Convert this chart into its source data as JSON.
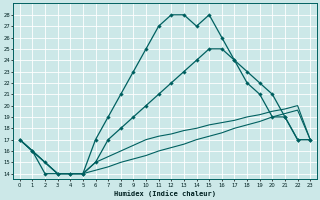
{
  "xlabel": "Humidex (Indice chaleur)",
  "bg_color": "#cce8e8",
  "grid_color": "#ffffff",
  "line_color": "#006060",
  "xlim": [
    -0.5,
    23.5
  ],
  "ylim": [
    13.5,
    29
  ],
  "yticks": [
    14,
    15,
    16,
    17,
    18,
    19,
    20,
    21,
    22,
    23,
    24,
    25,
    26,
    27,
    28
  ],
  "xticks": [
    0,
    1,
    2,
    3,
    4,
    5,
    6,
    7,
    8,
    9,
    10,
    11,
    12,
    13,
    14,
    15,
    16,
    17,
    18,
    19,
    20,
    21,
    22,
    23
  ],
  "line1_x": [
    0,
    1,
    2,
    3,
    4,
    5,
    6,
    7,
    8,
    9,
    10,
    11,
    12,
    13,
    14,
    15,
    16,
    17,
    18,
    19,
    20,
    21,
    22,
    23
  ],
  "line1_y": [
    17,
    16,
    14,
    14,
    14,
    14,
    17,
    19,
    21,
    23,
    25,
    27,
    28,
    28,
    27,
    28,
    26,
    24,
    22,
    21,
    19,
    19,
    17,
    17
  ],
  "line2_x": [
    0,
    1,
    2,
    3,
    4,
    5,
    6,
    7,
    8,
    9,
    10,
    11,
    12,
    13,
    14,
    15,
    16,
    17,
    18,
    19,
    20,
    21,
    22,
    23
  ],
  "line2_y": [
    17,
    16,
    15,
    14,
    14,
    14,
    15,
    17,
    18,
    19,
    20,
    21,
    22,
    23,
    24,
    25,
    25,
    24,
    23,
    22,
    21,
    19,
    17,
    17
  ],
  "line3_x": [
    0,
    1,
    2,
    3,
    4,
    5,
    6,
    7,
    8,
    9,
    10,
    11,
    12,
    13,
    14,
    15,
    16,
    17,
    18,
    19,
    20,
    21,
    22,
    23
  ],
  "line3_y": [
    17,
    16,
    15,
    14,
    14,
    14,
    15,
    15.5,
    16,
    16.5,
    17,
    17.3,
    17.5,
    17.8,
    18,
    18.3,
    18.5,
    18.7,
    19,
    19.2,
    19.5,
    19.7,
    20,
    17
  ],
  "line4_x": [
    0,
    1,
    2,
    3,
    4,
    5,
    6,
    7,
    8,
    9,
    10,
    11,
    12,
    13,
    14,
    15,
    16,
    17,
    18,
    19,
    20,
    21,
    22,
    23
  ],
  "line4_y": [
    17,
    16,
    15,
    14,
    14,
    14,
    14.3,
    14.6,
    15,
    15.3,
    15.6,
    16,
    16.3,
    16.6,
    17,
    17.3,
    17.6,
    18,
    18.3,
    18.6,
    19,
    19.3,
    19.6,
    17
  ]
}
